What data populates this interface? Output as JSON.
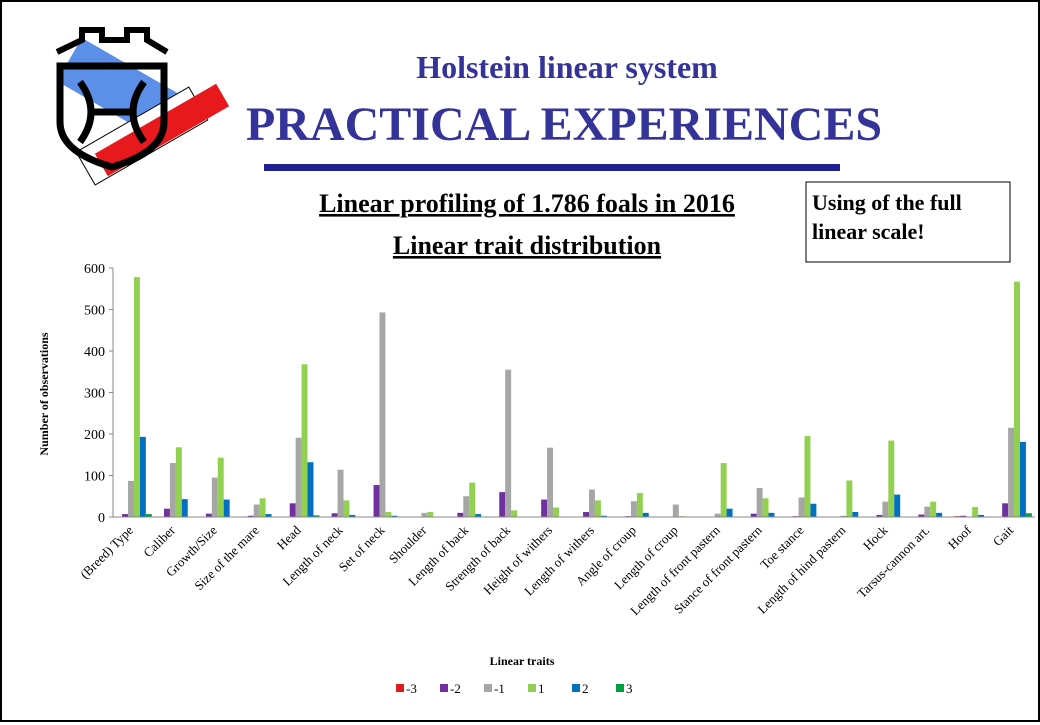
{
  "slide": {
    "title": "Holstein linear system",
    "subtitle": "PRACTICAL EXPERIENCES",
    "note": "Using of the full linear scale!"
  },
  "chart_data": {
    "type": "bar",
    "title": "Linear profiling of 1.786 foals in 2016",
    "subtitle": "Linear trait distribution",
    "y_label": "Number of observations",
    "x_label": "Linear traits",
    "categories": [
      "(Breed) Type",
      "Caliber",
      "Growth/Size",
      "Size of the mare",
      "Head",
      "Length of neck",
      "Set of neck",
      "Shoulder",
      "Length of back",
      "Strength of back",
      "Height of withers",
      "Length of withers",
      "Angle of croup",
      "Length of croup",
      "Length of front pastern",
      "Stance of front pastern",
      "Toe stance",
      "Length of hind pastern",
      "Hock",
      "Tarsus-cannon art.",
      "Hoof",
      "Gait"
    ],
    "series": [
      {
        "name": "-3",
        "color": "#e3191c",
        "values": [
          1,
          0,
          0,
          1,
          0,
          0,
          0,
          0,
          0,
          0,
          0,
          0,
          0,
          0,
          0,
          0,
          0,
          0,
          1,
          0,
          2,
          1
        ]
      },
      {
        "name": "-2",
        "color": "#7030a0",
        "values": [
          7,
          20,
          8,
          3,
          33,
          9,
          77,
          0,
          10,
          60,
          42,
          12,
          2,
          0,
          0,
          8,
          2,
          0,
          5,
          6,
          3,
          33
        ]
      },
      {
        "name": "-1",
        "color": "#a6a6a6",
        "values": [
          87,
          130,
          95,
          30,
          191,
          114,
          493,
          10,
          50,
          355,
          167,
          66,
          38,
          30,
          8,
          70,
          47,
          3,
          37,
          25,
          1,
          215
        ]
      },
      {
        "name": "1",
        "color": "#92d050",
        "values": [
          578,
          168,
          143,
          45,
          368,
          40,
          12,
          12,
          83,
          16,
          23,
          40,
          58,
          2,
          130,
          45,
          195,
          88,
          184,
          37,
          24,
          567
        ]
      },
      {
        "name": "2",
        "color": "#0070c0",
        "values": [
          193,
          43,
          42,
          7,
          132,
          5,
          3,
          0,
          7,
          0,
          0,
          3,
          10,
          0,
          20,
          10,
          32,
          12,
          54,
          10,
          5,
          181
        ]
      },
      {
        "name": "3",
        "color": "#00a040",
        "values": [
          7,
          1,
          1,
          0,
          4,
          0,
          0,
          0,
          0,
          0,
          0,
          0,
          0,
          0,
          1,
          0,
          1,
          0,
          1,
          0,
          1,
          9
        ]
      }
    ],
    "ylim": [
      0,
      600
    ],
    "yticks": [
      0,
      100,
      200,
      300,
      400,
      500,
      600
    ],
    "grid": false,
    "legend": "bottom"
  }
}
